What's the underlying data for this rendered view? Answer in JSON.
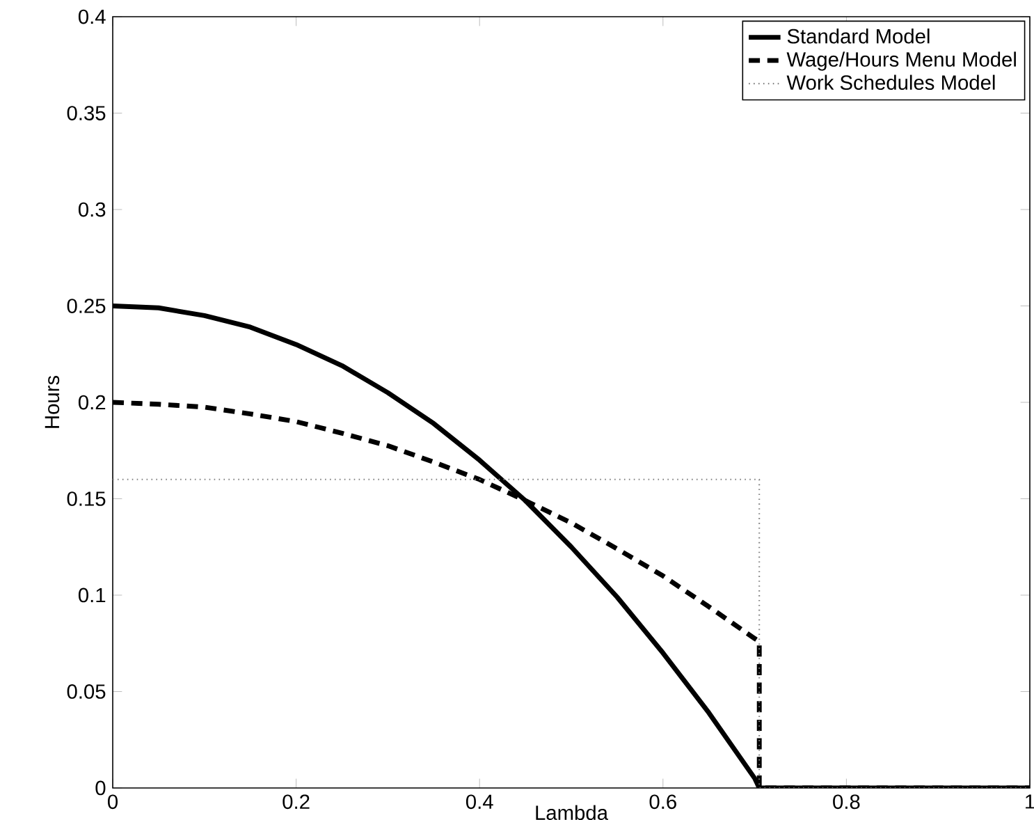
{
  "chart_data": {
    "type": "line",
    "xlabel": "Lambda",
    "ylabel": "Hours",
    "xlim": [
      0,
      1
    ],
    "ylim": [
      0,
      0.4
    ],
    "xticks": [
      0,
      0.2,
      0.4,
      0.6,
      0.8,
      1
    ],
    "yticks": [
      0,
      0.05,
      0.1,
      0.15,
      0.2,
      0.25,
      0.3,
      0.35,
      0.4
    ],
    "grid": false,
    "legend": "top right",
    "marker": "none",
    "series": [
      {
        "name": "Standard Model",
        "color": "#000000",
        "line_style": "solid",
        "x": [
          0,
          0.05,
          0.1,
          0.15,
          0.2,
          0.25,
          0.3,
          0.35,
          0.4,
          0.45,
          0.5,
          0.55,
          0.6,
          0.65,
          0.7,
          0.705,
          1
        ],
        "values": [
          0.25,
          0.249,
          0.245,
          0.239,
          0.23,
          0.219,
          0.205,
          0.189,
          0.17,
          0.149,
          0.125,
          0.099,
          0.07,
          0.039,
          0.005,
          0,
          0
        ]
      },
      {
        "name": "Wage/Hours Menu Model",
        "color": "#000000",
        "line_style": "dashed",
        "x": [
          0,
          0.05,
          0.1,
          0.15,
          0.2,
          0.25,
          0.3,
          0.35,
          0.4,
          0.45,
          0.5,
          0.55,
          0.6,
          0.65,
          0.7,
          0.705,
          0.705,
          1
        ],
        "values": [
          0.2,
          0.199,
          0.1975,
          0.194,
          0.19,
          0.184,
          0.1775,
          0.169,
          0.16,
          0.149,
          0.1375,
          0.124,
          0.11,
          0.094,
          0.0775,
          0.076,
          0,
          0
        ]
      },
      {
        "name": "Work Schedules Model",
        "color": "#808080",
        "line_style": "dotted",
        "x": [
          0,
          0.705,
          0.705,
          1
        ],
        "values": [
          0.16,
          0.16,
          0,
          0
        ]
      }
    ]
  }
}
